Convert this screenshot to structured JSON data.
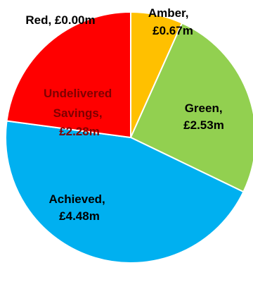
{
  "chart_data": {
    "type": "pie",
    "start_angle_degrees": 0,
    "direction": "clockwise",
    "slice_border": "#ffffff",
    "slices": [
      {
        "category": "Amber",
        "value_label": "£0.67m",
        "value": 0.67,
        "color": "#ffc000",
        "label_color": "#000000"
      },
      {
        "category": "Green",
        "value_label": "£2.53m",
        "value": 2.53,
        "color": "#92d050",
        "label_color": "#000000"
      },
      {
        "category": "Achieved",
        "value_label": "£4.48m",
        "value": 4.48,
        "color": "#00b0f0",
        "label_color": "#000000"
      },
      {
        "category": "Undelivered Savings",
        "value_label": "£2.28m",
        "value": 2.28,
        "color": "#ff0000",
        "label_color": "#800000"
      },
      {
        "category": "Red",
        "value_label": "£0.00m",
        "value": 0.0,
        "color": "#ff0000",
        "label_color": "#000000"
      }
    ],
    "labels": {
      "amber": [
        "Amber,",
        "£0.67m"
      ],
      "green": [
        "Green,",
        "£2.53m"
      ],
      "achieved": [
        "Achieved,",
        "£4.48m"
      ],
      "undelivered": [
        "Undelivered",
        "Savings,",
        "£2.28m"
      ],
      "red": [
        "Red, £0.00m"
      ]
    }
  }
}
